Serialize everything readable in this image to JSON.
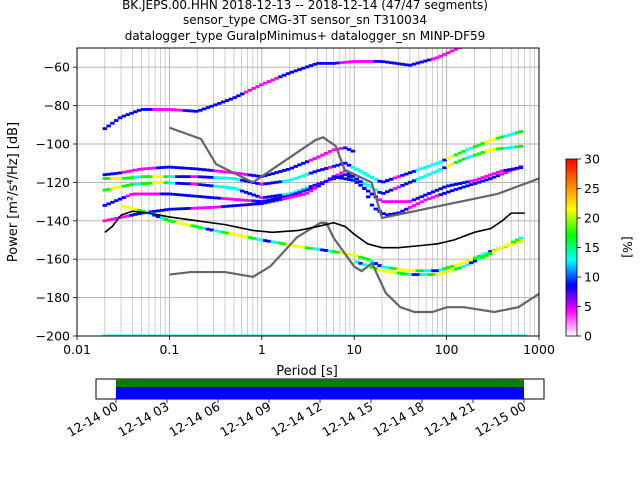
{
  "chart_data": {
    "type": "heatmap",
    "title_lines": [
      "BK.JEPS.00.HHN   2018-12-13 -- 2018-12-14  (47/47 segments)",
      "sensor_type CMG-3T sensor_sn T310034",
      "datalogger_type GuralpMinimus+ datalogger_sn MINP-DF59"
    ],
    "xlabel": "Period [s]",
    "ylabel": "Power [m²/s⁴/Hz] [dB]",
    "xscale": "log",
    "xlim": [
      0.01,
      1000
    ],
    "ylim": [
      -200,
      -50
    ],
    "x_ticks": [
      0.01,
      0.1,
      1,
      10,
      100,
      1000
    ],
    "x_tick_labels": [
      "0.01",
      "0.1",
      "1",
      "10",
      "100",
      "1000"
    ],
    "y_ticks": [
      -200,
      -180,
      -160,
      -140,
      -120,
      -100,
      -80,
      -60
    ],
    "y_tick_labels": [
      "−200",
      "−180",
      "−160",
      "−140",
      "−120",
      "−100",
      "−80",
      "−60"
    ],
    "grid": true,
    "colorbar": {
      "label": "[%]",
      "range": [
        0,
        30
      ],
      "ticks": [
        0,
        5,
        10,
        15,
        20,
        25,
        30
      ],
      "colors": [
        "#ffffff",
        "#ff00ff",
        "#0000ff",
        "#00ffff",
        "#00ff00",
        "#ffff00",
        "#ff8000",
        "#ff0000"
      ]
    },
    "noise_models": {
      "high_noise_model": {
        "color": "#666666",
        "period": [
          0.1,
          0.22,
          0.32,
          0.8,
          3.8,
          4.6,
          6.3,
          7.9,
          15.4,
          20,
          354.8,
          1000
        ],
        "power": [
          -91.5,
          -97.4,
          -110.5,
          -120,
          -98,
          -96.5,
          -101,
          -113.5,
          -120,
          -138.5,
          -126,
          -118
        ]
      },
      "low_noise_model": {
        "color": "#666666",
        "period": [
          0.1,
          0.17,
          0.4,
          0.8,
          1.24,
          2.4,
          4.3,
          5,
          6,
          10,
          12,
          15.6,
          21.9,
          31.6,
          45,
          70,
          101,
          154,
          328,
          600,
          1000
        ],
        "power": [
          -168,
          -166.7,
          -166.7,
          -169.2,
          -163.7,
          -148.6,
          -141.1,
          -141.1,
          -149,
          -163.8,
          -166.2,
          -162.1,
          -177.5,
          -185,
          -187.5,
          -187.5,
          -185,
          -185,
          -187.5,
          -185,
          -178
        ]
      }
    },
    "series": [
      {
        "name": "",
        "color": "#000000",
        "period": [
          0.02,
          0.024,
          0.03,
          0.04,
          0.06,
          0.1,
          0.2,
          0.4,
          0.8,
          1.3,
          2.5,
          4,
          6,
          8,
          10,
          14,
          20,
          30,
          50,
          80,
          120,
          200,
          300,
          400,
          500,
          700
        ],
        "power": [
          -146,
          -143,
          -137,
          -135,
          -136,
          -138,
          -140,
          -142,
          -145,
          -146,
          -145,
          -143,
          -141,
          -143,
          -147,
          -152,
          -154,
          -154,
          -153,
          -152,
          -150,
          -146,
          -144,
          -140,
          -136,
          -136
        ]
      }
    ],
    "density_bands": [
      {
        "period": [
          0.02,
          0.03,
          0.05,
          0.1,
          0.2,
          0.3,
          0.5,
          1,
          2,
          4,
          6,
          10,
          20,
          40,
          80,
          150,
          300,
          700
        ],
        "power": [
          -92,
          -86,
          -82,
          -82,
          -83,
          -80,
          -76,
          -69,
          -63,
          -58,
          -58,
          -57,
          -57,
          -59,
          -55,
          -49,
          -47,
          -47
        ]
      },
      {
        "period": [
          0.02,
          0.03,
          0.05,
          0.1,
          0.2,
          0.5,
          1,
          2,
          4,
          6,
          8,
          10
        ],
        "power": [
          -116,
          -115,
          -113,
          -112,
          -113,
          -115,
          -117,
          -113,
          -107,
          -103,
          -102,
          -104
        ]
      },
      {
        "period": [
          0.02,
          0.03,
          0.05,
          0.1,
          0.2,
          0.5,
          1,
          2,
          4,
          8,
          15,
          20,
          40,
          80,
          150,
          300,
          700
        ],
        "power": [
          -118,
          -118,
          -117,
          -117,
          -117,
          -118,
          -121,
          -119,
          -114,
          -110,
          -117,
          -120,
          -115,
          -110,
          -104,
          -98,
          -93
        ]
      },
      {
        "period": [
          0.02,
          0.04,
          0.08,
          0.2,
          0.5,
          1,
          2,
          4,
          8,
          15,
          20,
          40,
          80,
          150,
          300,
          700
        ],
        "power": [
          -124,
          -121,
          -120,
          -121,
          -123,
          -128,
          -126,
          -121,
          -116,
          -122,
          -126,
          -120,
          -114,
          -108,
          -103,
          -101
        ]
      },
      {
        "period": [
          0.02,
          0.04,
          0.1,
          0.3,
          1,
          2,
          4,
          8,
          12,
          16,
          22,
          30,
          60,
          120,
          300,
          700
        ],
        "power": [
          -132,
          -126,
          -126,
          -128,
          -130,
          -127,
          -122,
          -114,
          -120,
          -133,
          -137,
          -136,
          -129,
          -124,
          -118,
          -111
        ]
      },
      {
        "period": [
          0.02,
          0.05,
          0.1,
          0.3,
          1,
          3,
          6,
          10,
          20,
          40,
          100,
          200,
          400,
          700
        ],
        "power": [
          -140,
          -136,
          -134,
          -133,
          -131,
          -126,
          -117,
          -119,
          -130,
          -130,
          -122,
          -119,
          -114,
          -112
        ]
      },
      {
        "period": [
          0.03,
          0.06,
          0.1,
          0.3,
          1,
          3,
          6,
          10,
          14,
          20,
          40,
          80,
          150,
          300,
          700
        ],
        "power": [
          -132,
          -136,
          -140,
          -145,
          -150,
          -154,
          -156,
          -158,
          -160,
          -164,
          -166,
          -166,
          -162,
          -156,
          -150
        ]
      },
      {
        "period": [
          10,
          20,
          40,
          80,
          150,
          300,
          700
        ],
        "power": [
          -161,
          -166,
          -168,
          -168,
          -164,
          -157,
          -148
        ]
      }
    ],
    "time_coverage": {
      "tick_labels": [
        "12-14 00",
        "12-14 03",
        "12-14 06",
        "12-14 09",
        "12-14 12",
        "12-14 15",
        "12-14 18",
        "12-14 21",
        "12-15 00"
      ],
      "coverage_color": "#0000ff",
      "ok_color": "#008000"
    }
  }
}
